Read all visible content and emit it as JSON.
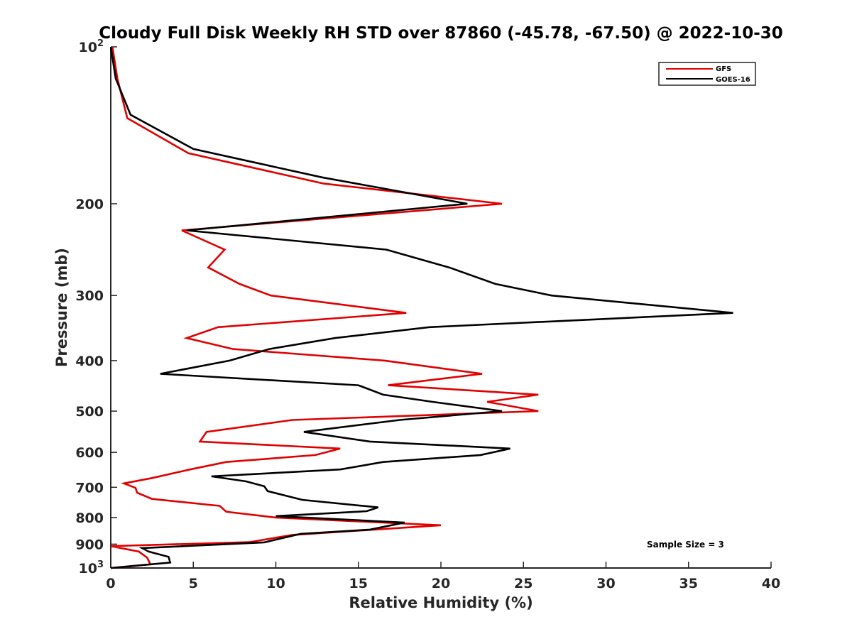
{
  "chart_data": {
    "type": "line",
    "title": "Cloudy Full Disk Weekly RH STD over 87860 (-45.78, -67.50) @ 2022-10-30",
    "xlabel": "Relative Humidity (%)",
    "ylabel": "Pressure (mb)",
    "xlim": [
      0,
      40
    ],
    "ylim": [
      100,
      1000
    ],
    "y_scale": "log",
    "y_reversed": true,
    "x_ticks": [
      "0",
      "5",
      "10",
      "15",
      "20",
      "25",
      "30",
      "35",
      "40"
    ],
    "y_ticks": [
      {
        "value": 100,
        "base": "10",
        "exp": "2"
      },
      {
        "value": 200,
        "label": "200"
      },
      {
        "value": 300,
        "label": "300"
      },
      {
        "value": 400,
        "label": "400"
      },
      {
        "value": 500,
        "label": "500"
      },
      {
        "value": 600,
        "label": "600"
      },
      {
        "value": 700,
        "label": "700"
      },
      {
        "value": 800,
        "label": "800"
      },
      {
        "value": 900,
        "label": "900"
      },
      {
        "value": 1000,
        "base": "10",
        "exp": "3"
      }
    ],
    "grid": false,
    "legend_position": "top-right",
    "series": [
      {
        "name": "GFS",
        "color": "#e00000",
        "points": [
          [
            0.1,
            100
          ],
          [
            0.4,
            115
          ],
          [
            1.0,
            137
          ],
          [
            4.7,
            160
          ],
          [
            12.9,
            183
          ],
          [
            23.7,
            200
          ],
          [
            4.3,
            225
          ],
          [
            6.9,
            245
          ],
          [
            5.9,
            265
          ],
          [
            7.8,
            285
          ],
          [
            9.7,
            300
          ],
          [
            17.9,
            324
          ],
          [
            6.5,
            345
          ],
          [
            4.6,
            362
          ],
          [
            7.4,
            380
          ],
          [
            16.6,
            400
          ],
          [
            22.5,
            424
          ],
          [
            16.8,
            446
          ],
          [
            25.9,
            465
          ],
          [
            22.8,
            480
          ],
          [
            25.9,
            500
          ],
          [
            11.0,
            520
          ],
          [
            5.8,
            548
          ],
          [
            5.4,
            572
          ],
          [
            13.9,
            590
          ],
          [
            12.4,
            607
          ],
          [
            7.0,
            626
          ],
          [
            4.8,
            647
          ],
          [
            2.5,
            672
          ],
          [
            0.8,
            688
          ],
          [
            1.5,
            702
          ],
          [
            1.6,
            717
          ],
          [
            2.5,
            737
          ],
          [
            6.6,
            760
          ],
          [
            7.0,
            780
          ],
          [
            10.0,
            800
          ],
          [
            20.0,
            828
          ],
          [
            11.0,
            864
          ],
          [
            8.4,
            892
          ],
          [
            0.0,
            908
          ],
          [
            1.7,
            930
          ],
          [
            2.2,
            955
          ],
          [
            2.4,
            984
          ],
          [
            0.0,
            1000
          ]
        ]
      },
      {
        "name": "GOES-16",
        "color": "#000000",
        "points": [
          [
            0.0,
            100
          ],
          [
            0.3,
            115
          ],
          [
            1.2,
            135
          ],
          [
            5.0,
            157
          ],
          [
            12.8,
            178
          ],
          [
            21.6,
            200
          ],
          [
            4.6,
            225
          ],
          [
            16.7,
            245
          ],
          [
            20.5,
            265
          ],
          [
            23.3,
            285
          ],
          [
            26.7,
            300
          ],
          [
            37.7,
            324
          ],
          [
            19.3,
            345
          ],
          [
            13.6,
            362
          ],
          [
            9.6,
            380
          ],
          [
            7.2,
            400
          ],
          [
            3.0,
            424
          ],
          [
            15.0,
            446
          ],
          [
            16.5,
            465
          ],
          [
            19.5,
            480
          ],
          [
            23.7,
            500
          ],
          [
            17.5,
            520
          ],
          [
            11.7,
            548
          ],
          [
            15.7,
            572
          ],
          [
            24.2,
            590
          ],
          [
            22.4,
            607
          ],
          [
            16.5,
            626
          ],
          [
            13.9,
            647
          ],
          [
            6.1,
            667
          ],
          [
            8.2,
            682
          ],
          [
            9.3,
            697
          ],
          [
            9.5,
            712
          ],
          [
            11.6,
            740
          ],
          [
            16.2,
            765
          ],
          [
            15.5,
            778
          ],
          [
            10.0,
            795
          ],
          [
            17.8,
            818
          ],
          [
            15.7,
            844
          ],
          [
            11.5,
            860
          ],
          [
            9.3,
            893
          ],
          [
            1.9,
            916
          ],
          [
            2.3,
            930
          ],
          [
            3.5,
            952
          ],
          [
            3.6,
            976
          ],
          [
            0.0,
            1000
          ]
        ]
      }
    ],
    "annotations": [
      "Sample Size = 3"
    ]
  }
}
